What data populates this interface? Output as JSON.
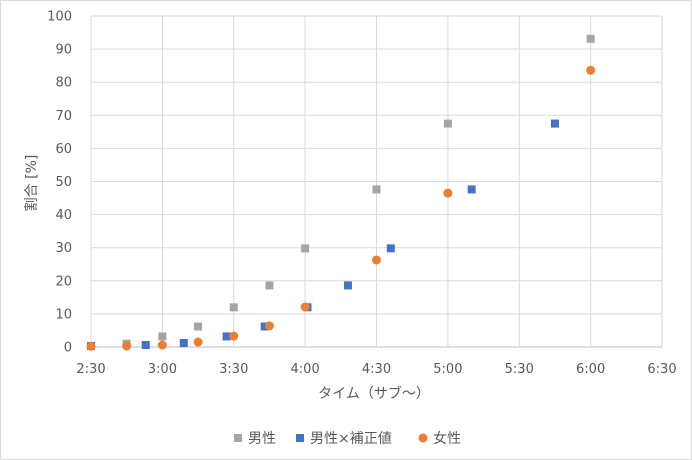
{
  "chart_data": {
    "type": "scatter",
    "xlabel": "タイム（サブ〜）",
    "ylabel": "割合 [%]",
    "x_ticks": [
      "2:30",
      "3:00",
      "3:30",
      "4:00",
      "4:30",
      "5:00",
      "5:30",
      "6:00",
      "6:30"
    ],
    "x_range": [
      "2:30",
      "6:30"
    ],
    "y_ticks": [
      0,
      10,
      20,
      30,
      40,
      50,
      60,
      70,
      80,
      90,
      100
    ],
    "ylim": [
      0,
      100
    ],
    "grid": true,
    "legend_position": "bottom",
    "series": [
      {
        "name": "男性",
        "marker": "square",
        "color": "#a5a5a5",
        "points": [
          {
            "x": "2:30",
            "y": 0.3
          },
          {
            "x": "2:45",
            "y": 1.0
          },
          {
            "x": "3:00",
            "y": 3.2
          },
          {
            "x": "3:15",
            "y": 6.2
          },
          {
            "x": "3:30",
            "y": 12.0
          },
          {
            "x": "3:45",
            "y": 18.6
          },
          {
            "x": "4:00",
            "y": 29.8
          },
          {
            "x": "4:30",
            "y": 47.6
          },
          {
            "x": "5:00",
            "y": 67.5
          },
          {
            "x": "6:00",
            "y": 93.1
          }
        ]
      },
      {
        "name": "男性×補正値",
        "marker": "square",
        "color": "#4472c4",
        "points": [
          {
            "x": "2:30",
            "y": 0.3
          },
          {
            "x": "2:53",
            "y": 0.6
          },
          {
            "x": "3:09",
            "y": 1.2
          },
          {
            "x": "3:27",
            "y": 3.2
          },
          {
            "x": "3:43",
            "y": 6.2
          },
          {
            "x": "4:01",
            "y": 12.0
          },
          {
            "x": "4:18",
            "y": 18.6
          },
          {
            "x": "4:36",
            "y": 29.8
          },
          {
            "x": "5:10",
            "y": 47.6
          },
          {
            "x": "5:45",
            "y": 67.5
          }
        ]
      },
      {
        "name": "女性",
        "marker": "circle",
        "color": "#ed7d31",
        "points": [
          {
            "x": "2:30",
            "y": 0.2
          },
          {
            "x": "2:45",
            "y": 0.3
          },
          {
            "x": "3:00",
            "y": 0.6
          },
          {
            "x": "3:15",
            "y": 1.5
          },
          {
            "x": "3:30",
            "y": 3.3
          },
          {
            "x": "3:45",
            "y": 6.4
          },
          {
            "x": "4:00",
            "y": 12.1
          },
          {
            "x": "4:30",
            "y": 26.3
          },
          {
            "x": "5:00",
            "y": 46.5
          },
          {
            "x": "6:00",
            "y": 83.6
          }
        ]
      }
    ]
  }
}
